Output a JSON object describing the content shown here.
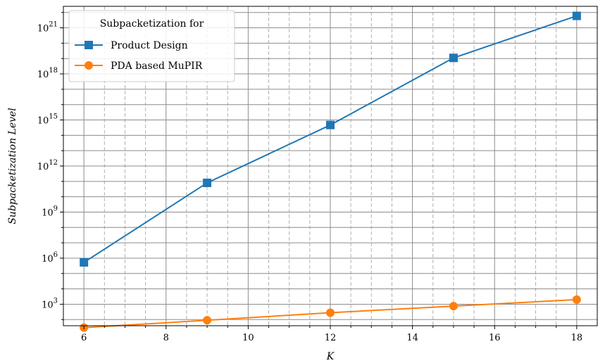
{
  "chart_data": {
    "type": "line",
    "xlabel": "K",
    "ylabel": "Subpacketization Level",
    "yscale": "log",
    "xlim": [
      5.5,
      18.5
    ],
    "ylim_log10": [
      1.6,
      22.4
    ],
    "x_ticks": [
      6,
      8,
      10,
      12,
      14,
      16,
      18
    ],
    "y_ticks_exponents": [
      3,
      6,
      9,
      12,
      15,
      18,
      21
    ],
    "grid": true,
    "legend": {
      "title": "Subpacketization for",
      "placement": "top-left"
    },
    "x": [
      6,
      9,
      12,
      15,
      18
    ],
    "series": [
      {
        "name": "Product Design",
        "color": "#1f77b4",
        "marker": "square",
        "values": [
          531441,
          80000000000.0,
          470000000000000.0,
          1.1e+19,
          6e+21
        ]
      },
      {
        "name": "PDA based MuPIR",
        "color": "#ff7f0e",
        "marker": "circle",
        "values": [
          30,
          90,
          280,
          750,
          2000
        ]
      }
    ]
  }
}
